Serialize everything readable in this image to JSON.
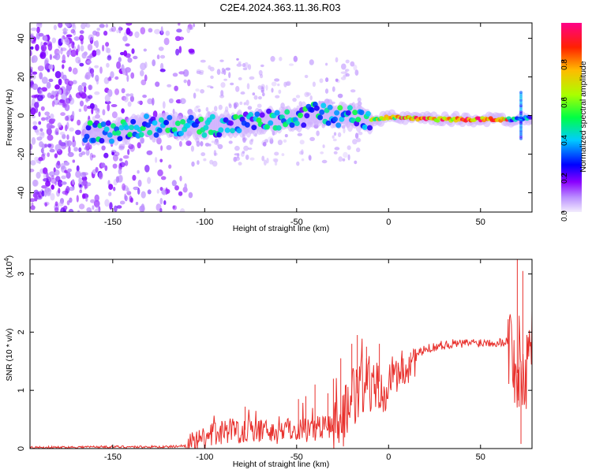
{
  "title": "C2E4.2024.363.11.36.R03",
  "chart_data": [
    {
      "type": "heatmap",
      "xlabel": "Height of straight line (km)",
      "ylabel": "Frequency (Hz)",
      "xlim": [
        -195,
        78
      ],
      "ylim": [
        -50,
        48
      ],
      "x_ticks": [
        -150,
        -100,
        -50,
        0,
        50
      ],
      "x_tick_labels": [
        "-150",
        "-100",
        "-50",
        "0",
        "50"
      ],
      "y_ticks": [
        -40,
        -20,
        0,
        20,
        40
      ],
      "y_tick_labels": [
        "-40",
        "-20",
        "0",
        "20",
        "40"
      ],
      "colorbar": {
        "label": "Normalized spectral amplitude",
        "range": [
          0,
          1
        ],
        "ticks": [
          0.0,
          0.2,
          0.4,
          0.6,
          0.8
        ],
        "tick_labels": [
          "0.0",
          "0.2",
          "0.4",
          "0.6",
          "0.8"
        ],
        "colormap": [
          "#ffffff",
          "#e9d8fb",
          "#8a00ff",
          "#0000ff",
          "#00ccff",
          "#00ff44",
          "#ccff00",
          "#ff9900",
          "#ff0000",
          "#ff0088"
        ]
      },
      "ridge": {
        "description_points_x": [
          -165,
          -150,
          -130,
          -110,
          -90,
          -70,
          -50,
          -40,
          -30,
          -20,
          -10,
          0,
          20,
          40,
          60,
          70,
          75
        ],
        "frequency_hz": [
          -8,
          -9,
          -5,
          -6,
          -5,
          -3,
          -2,
          2,
          0,
          -1,
          -2,
          -1,
          -2,
          -2,
          -2,
          -2,
          -1
        ]
      },
      "grid": false
    },
    {
      "type": "line",
      "xlabel": "Height of straight line (km)",
      "ylabel": "SNR (10 * v/v)",
      "y_multiplier_label": "(x10",
      "y_multiplier_exp": "4",
      "xlim": [
        -195,
        78
      ],
      "ylim": [
        0,
        3.25
      ],
      "x_ticks": [
        -150,
        -100,
        -50,
        0,
        50
      ],
      "x_tick_labels": [
        "-150",
        "-100",
        "-50",
        "0",
        "50"
      ],
      "y_ticks": [
        0,
        1,
        2,
        3
      ],
      "y_tick_labels": [
        "0",
        "1",
        "2",
        "3"
      ],
      "series": [
        {
          "color": "#e8302c",
          "x": [
            -195,
            -180,
            -160,
            -140,
            -120,
            -110,
            -105,
            -100,
            -95,
            -90,
            -85,
            -80,
            -75,
            -70,
            -65,
            -60,
            -55,
            -50,
            -45,
            -40,
            -35,
            -30,
            -25,
            -20,
            -15,
            -10,
            -5,
            0,
            5,
            10,
            15,
            20,
            25,
            30,
            35,
            40,
            45,
            50,
            55,
            60,
            65,
            68,
            70,
            72,
            74,
            76,
            78
          ],
          "y": [
            0.02,
            0.02,
            0.03,
            0.03,
            0.03,
            0.05,
            0.08,
            0.15,
            0.25,
            0.3,
            0.32,
            0.3,
            0.35,
            0.3,
            0.3,
            0.28,
            0.32,
            0.35,
            0.33,
            0.35,
            0.38,
            0.4,
            0.45,
            0.8,
            1.05,
            1.1,
            1.15,
            1.2,
            1.3,
            1.4,
            1.6,
            1.7,
            1.75,
            1.78,
            1.8,
            1.8,
            1.82,
            1.82,
            1.83,
            1.82,
            1.85,
            1.6,
            1.3,
            1.5,
            1.2,
            1.7,
            1.9
          ],
          "spikes": [
            {
              "x": -78,
              "y": 0.72
            },
            {
              "x": -49,
              "y": 0.85
            },
            {
              "x": -45,
              "y": 0.9
            },
            {
              "x": -40,
              "y": 1.1
            },
            {
              "x": -33,
              "y": 0.95
            },
            {
              "x": -30,
              "y": 1.2
            },
            {
              "x": -26,
              "y": 1.55
            },
            {
              "x": -20,
              "y": 1.8
            },
            {
              "x": -17,
              "y": 1.95
            },
            {
              "x": -12,
              "y": 1.75
            },
            {
              "x": -5,
              "y": 1.8
            },
            {
              "x": 8,
              "y": 1.55
            },
            {
              "x": 12,
              "y": 1.65
            },
            {
              "x": 70,
              "y": 3.25
            },
            {
              "x": 71,
              "y": 0.72
            },
            {
              "x": 73,
              "y": 3.05
            },
            {
              "x": 72,
              "y": 0.08
            }
          ]
        }
      ],
      "grid": false
    }
  ]
}
